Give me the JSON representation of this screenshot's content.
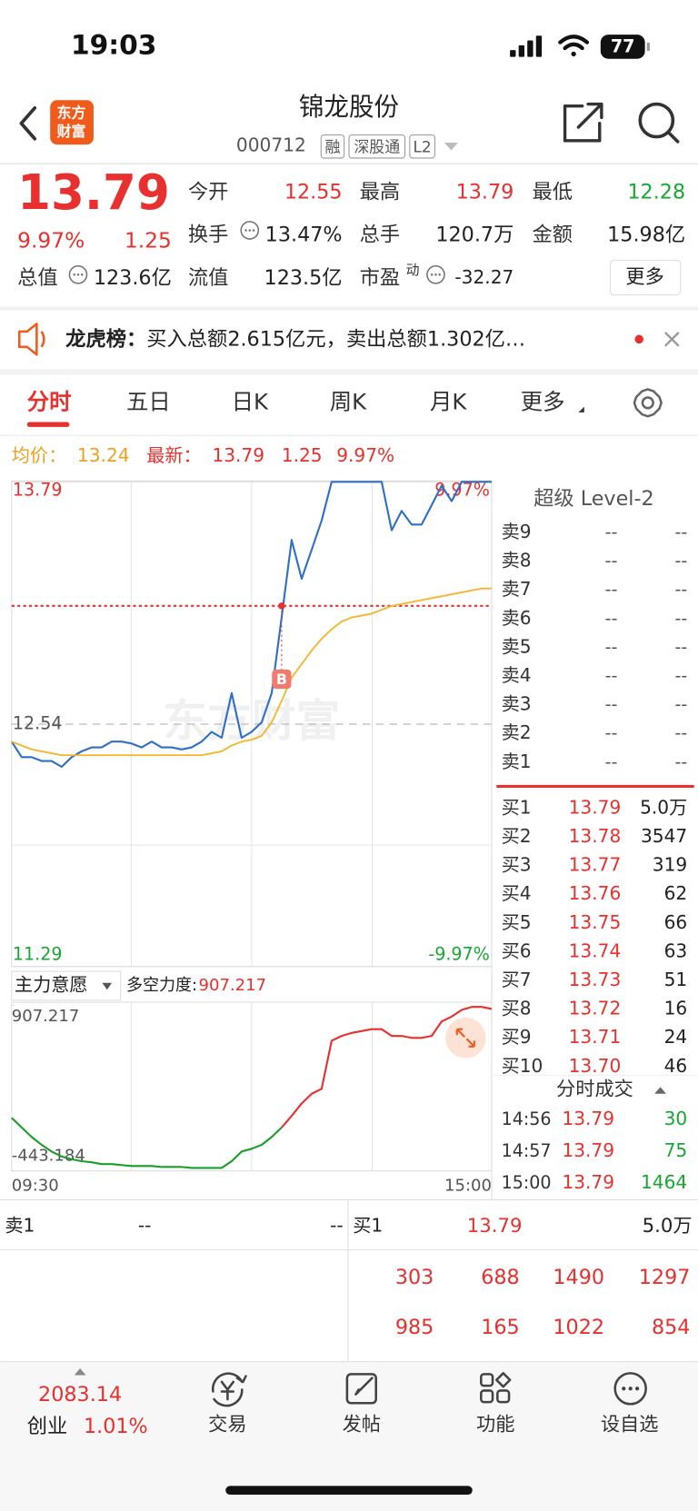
{
  "status": {
    "time": "19:03",
    "battery": "77"
  },
  "header": {
    "logo": [
      "东方",
      "财富"
    ],
    "title": "锦龙股份",
    "code": "000712",
    "tags": [
      "融",
      "深股通",
      "L2"
    ]
  },
  "quote": {
    "price": "13.79",
    "change_pct": "9.97%",
    "change": "1.25",
    "more": "更多",
    "fields": [
      {
        "label": "今开",
        "value": "12.55",
        "tone": "up"
      },
      {
        "label": "最高",
        "value": "13.79",
        "tone": "up"
      },
      {
        "label": "最低",
        "value": "12.28",
        "tone": "down"
      },
      {
        "label": "换手",
        "value": "13.47%",
        "tone": "flat"
      },
      {
        "label": "总手",
        "value": "120.7万",
        "tone": "flat"
      },
      {
        "label": "金额",
        "value": "15.98亿",
        "tone": "flat"
      },
      {
        "label": "总值",
        "value": "123.6亿",
        "tone": "flat"
      },
      {
        "label": "流值",
        "value": "123.5亿",
        "tone": "flat"
      },
      {
        "label": "市盈",
        "sup": "动",
        "value": "-32.27",
        "tone": "flat"
      }
    ]
  },
  "notice": {
    "label": "龙虎榜：",
    "text": "买入总额2.615亿元，卖出总额1.302亿…"
  },
  "tabs": [
    "分时",
    "五日",
    "日K",
    "周K",
    "月K",
    "更多"
  ],
  "summary": {
    "avg_label": "均价：",
    "avg": "13.24",
    "last_label": "最新：",
    "last": "13.79",
    "change": "1.25",
    "pct": "9.97%"
  },
  "chart_data": [
    {
      "type": "line",
      "watermark": "东方财富",
      "ylim": [
        11.29,
        13.79
      ],
      "yticks": [
        11.29,
        12.54,
        13.79
      ],
      "y2lim": [
        -9.97,
        9.97
      ],
      "y2ticks": [
        {
          "value": -9.97,
          "label": "-9.97%"
        },
        {
          "value": 9.97,
          "label": "9.97%"
        }
      ],
      "series": [
        {
          "color": "#2f6fc7",
          "values": [
            12.45,
            12.37,
            12.37,
            12.35,
            12.35,
            12.32,
            12.37,
            12.4,
            12.42,
            12.42,
            12.45,
            12.45,
            12.44,
            12.42,
            12.45,
            12.42,
            12.42,
            12.41,
            12.42,
            12.45,
            12.5,
            12.47,
            12.7,
            12.47,
            12.5,
            12.55,
            12.7,
            13.09,
            13.49,
            13.29,
            13.44,
            13.59,
            13.79,
            13.79,
            13.79,
            13.79,
            13.79,
            13.79,
            13.54,
            13.64,
            13.57,
            13.57,
            13.67,
            13.77,
            13.69,
            13.79,
            13.79,
            13.79,
            13.79
          ]
        },
        {
          "color": "#f5b731",
          "values": [
            12.45,
            12.43,
            12.41,
            12.4,
            12.39,
            12.38,
            12.38,
            12.38,
            12.38,
            12.38,
            12.38,
            12.38,
            12.38,
            12.38,
            12.38,
            12.38,
            12.38,
            12.38,
            12.38,
            12.38,
            12.39,
            12.4,
            12.43,
            12.45,
            12.46,
            12.48,
            12.55,
            12.66,
            12.78,
            12.85,
            12.92,
            12.98,
            13.03,
            13.07,
            13.09,
            13.1,
            13.11,
            13.13,
            13.15,
            13.16,
            13.17,
            13.18,
            13.19,
            13.2,
            13.21,
            13.22,
            13.23,
            13.24,
            13.24
          ]
        }
      ],
      "buy_point": {
        "label": "B",
        "index": 27,
        "value": 13.15,
        "color": "#e8302e"
      }
    },
    {
      "type": "line",
      "title": "主力意愿",
      "label": "多空力度:",
      "current": "907.217",
      "ylim": [
        -443.184,
        907.217
      ],
      "yticks": [
        -443.184,
        907.217
      ],
      "categories": [
        "09:30",
        null,
        null,
        null,
        null,
        null,
        null,
        null,
        null,
        null,
        null,
        null,
        null,
        null,
        null,
        null,
        null,
        null,
        null,
        null,
        null,
        null,
        null,
        null,
        null,
        null,
        null,
        null,
        null,
        null,
        null,
        null,
        null,
        null,
        null,
        null,
        null,
        null,
        null,
        null,
        null,
        null,
        null,
        null,
        null,
        null,
        null,
        null,
        "15:00"
      ],
      "series": [
        {
          "color": "#1a9e2a",
          "positive_color": "#e8302e",
          "values": [
            -11,
            -90,
            -168,
            -231,
            -286,
            -326,
            -349,
            -365,
            -373,
            -388,
            -388,
            -396,
            -404,
            -404,
            -404,
            -412,
            -412,
            -412,
            -420,
            -420,
            -420,
            -420,
            -365,
            -286,
            -263,
            -231,
            -168,
            -90,
            4,
            106,
            185,
            224,
            617,
            656,
            680,
            695,
            711,
            711,
            656,
            656,
            640,
            640,
            656,
            774,
            813,
            868,
            892,
            892,
            876
          ]
        }
      ]
    }
  ],
  "level2": {
    "title": "超级 Level-2",
    "asks": [
      {
        "label": "卖9",
        "price": "--",
        "volume": "--"
      },
      {
        "label": "卖8",
        "price": "--",
        "volume": "--"
      },
      {
        "label": "卖7",
        "price": "--",
        "volume": "--"
      },
      {
        "label": "卖6",
        "price": "--",
        "volume": "--"
      },
      {
        "label": "卖5",
        "price": "--",
        "volume": "--"
      },
      {
        "label": "卖4",
        "price": "--",
        "volume": "--"
      },
      {
        "label": "卖3",
        "price": "--",
        "volume": "--"
      },
      {
        "label": "卖2",
        "price": "--",
        "volume": "--"
      },
      {
        "label": "卖1",
        "price": "--",
        "volume": "--"
      }
    ],
    "bids": [
      {
        "label": "买1",
        "price": "13.79",
        "volume": "5.0万"
      },
      {
        "label": "买2",
        "price": "13.78",
        "volume": "3547"
      },
      {
        "label": "买3",
        "price": "13.77",
        "volume": "319"
      },
      {
        "label": "买4",
        "price": "13.76",
        "volume": "62"
      },
      {
        "label": "买5",
        "price": "13.75",
        "volume": "66"
      },
      {
        "label": "买6",
        "price": "13.74",
        "volume": "63"
      },
      {
        "label": "买7",
        "price": "13.73",
        "volume": "51"
      },
      {
        "label": "买8",
        "price": "13.72",
        "volume": "16"
      },
      {
        "label": "买9",
        "price": "13.71",
        "volume": "24"
      },
      {
        "label": "买10",
        "price": "13.70",
        "volume": "46"
      }
    ]
  },
  "trades": {
    "title": "分时成交",
    "rows": [
      [
        "14:56",
        "13.79",
        "30"
      ],
      [
        "14:57",
        "13.79",
        "75"
      ],
      [
        "15:00",
        "13.79",
        "1464"
      ]
    ]
  },
  "depth": {
    "sell": {
      "label": "卖1",
      "price": "--",
      "volume": "--"
    },
    "buy": {
      "label": "买1",
      "price": "13.79",
      "volume": "5.0万"
    },
    "queue": [
      [
        "303",
        "688",
        "1490",
        "1297"
      ],
      [
        "985",
        "165",
        "1022",
        "854"
      ]
    ]
  },
  "tabbar": {
    "index": {
      "value": "2083.14",
      "name": "创业",
      "pct": "1.01%"
    },
    "items": [
      "交易",
      "发帖",
      "功能",
      "设自选"
    ]
  }
}
